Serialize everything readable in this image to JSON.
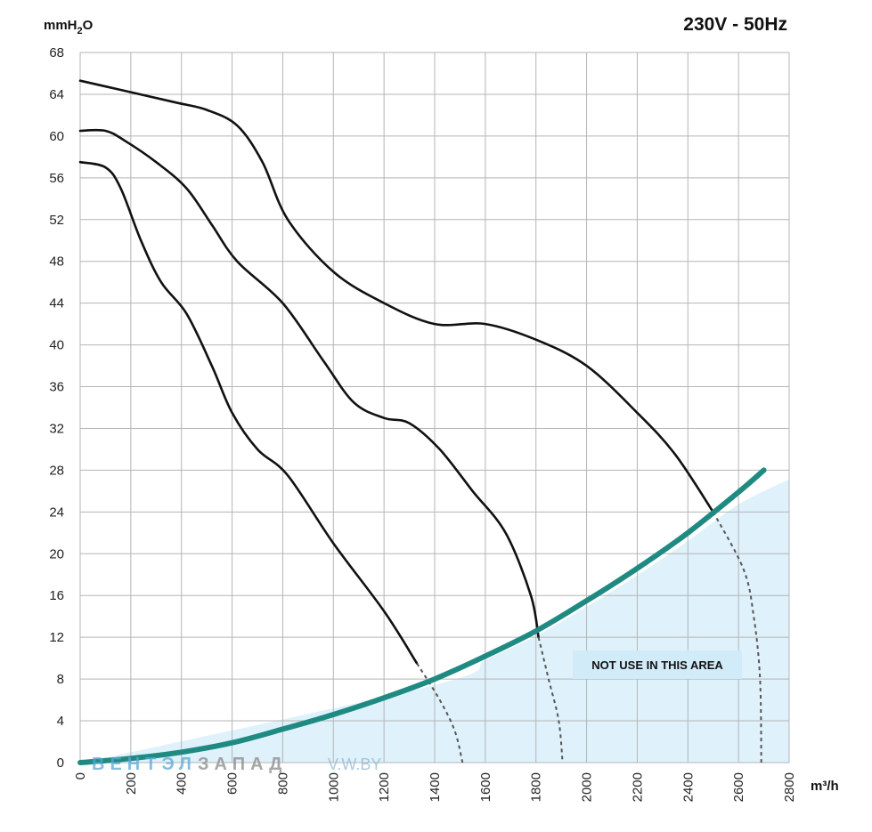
{
  "header": {
    "y_unit": "mmH",
    "y_unit_sub": "2",
    "y_unit_tail": "O",
    "supply": "230V - 50Hz",
    "x_unit": "m³/h"
  },
  "annotation": {
    "text": "NOT USE IN THIS AREA"
  },
  "watermark": {
    "part1": "ВЕНТЭЛ",
    "part2": "ЗАПАД",
    "part3": "V.W.BY"
  },
  "colors": {
    "curve": "#111111",
    "system_curve": "#1f8a82",
    "forbidden_fill": "#dff1fb",
    "grid": "#b5b5b5"
  },
  "chart_data": {
    "type": "line",
    "xlim": [
      0,
      2800
    ],
    "ylim": [
      0,
      68
    ],
    "xticks": [
      0,
      200,
      400,
      600,
      800,
      1000,
      1200,
      1400,
      1600,
      1800,
      2000,
      2200,
      2400,
      2600,
      2800
    ],
    "yticks": [
      0,
      4,
      8,
      12,
      16,
      20,
      24,
      28,
      32,
      36,
      40,
      44,
      48,
      52,
      56,
      60,
      64,
      68
    ],
    "grid": true,
    "series": [
      {
        "style": "fan-curve",
        "points": [
          [
            0,
            57.5
          ],
          [
            100,
            57
          ],
          [
            160,
            55
          ],
          [
            240,
            50
          ],
          [
            320,
            46
          ],
          [
            420,
            43
          ],
          [
            520,
            38
          ],
          [
            600,
            33.5
          ],
          [
            700,
            30
          ],
          [
            820,
            27.5
          ],
          [
            1000,
            21
          ],
          [
            1200,
            14.5
          ],
          [
            1330,
            9.5
          ]
        ],
        "extension": [
          [
            1330,
            9.5
          ],
          [
            1420,
            6
          ],
          [
            1480,
            3
          ],
          [
            1510,
            0
          ]
        ]
      },
      {
        "style": "fan-curve",
        "points": [
          [
            0,
            60.5
          ],
          [
            100,
            60.5
          ],
          [
            180,
            59.5
          ],
          [
            300,
            57.5
          ],
          [
            420,
            55
          ],
          [
            520,
            51.5
          ],
          [
            620,
            48
          ],
          [
            800,
            44
          ],
          [
            960,
            38.5
          ],
          [
            1080,
            34.5
          ],
          [
            1200,
            33
          ],
          [
            1300,
            32.5
          ],
          [
            1420,
            30
          ],
          [
            1550,
            26
          ],
          [
            1680,
            22
          ],
          [
            1780,
            16
          ],
          [
            1810,
            12
          ]
        ],
        "extension": [
          [
            1810,
            12
          ],
          [
            1850,
            8
          ],
          [
            1890,
            4
          ],
          [
            1905,
            0
          ]
        ]
      },
      {
        "style": "fan-curve",
        "points": [
          [
            0,
            65.3
          ],
          [
            200,
            64.2
          ],
          [
            380,
            63.2
          ],
          [
            500,
            62.5
          ],
          [
            620,
            61
          ],
          [
            720,
            57.5
          ],
          [
            820,
            52
          ],
          [
            1000,
            47
          ],
          [
            1200,
            44
          ],
          [
            1400,
            42
          ],
          [
            1600,
            42
          ],
          [
            1800,
            40.5
          ],
          [
            2000,
            38
          ],
          [
            2200,
            33.5
          ],
          [
            2350,
            29.5
          ],
          [
            2500,
            24
          ]
        ],
        "extension": [
          [
            2500,
            24
          ],
          [
            2620,
            18.5
          ],
          [
            2660,
            14
          ],
          [
            2685,
            8
          ],
          [
            2690,
            0
          ]
        ]
      },
      {
        "style": "system-curve",
        "points": [
          [
            0,
            0
          ],
          [
            200,
            0.4
          ],
          [
            400,
            1
          ],
          [
            600,
            1.9
          ],
          [
            800,
            3.2
          ],
          [
            1000,
            4.6
          ],
          [
            1200,
            6.2
          ],
          [
            1400,
            8
          ],
          [
            1600,
            10.2
          ],
          [
            1800,
            12.6
          ],
          [
            2000,
            15.5
          ],
          [
            2200,
            18.6
          ],
          [
            2400,
            22
          ],
          [
            2600,
            25.9
          ],
          [
            2700,
            28
          ]
        ]
      },
      {
        "style": "forbidden-area-boundary",
        "points": [
          [
            0,
            0
          ],
          [
            1400,
            7.5
          ],
          [
            1600,
            9.9
          ],
          [
            1800,
            12.2
          ],
          [
            2000,
            15
          ],
          [
            2200,
            18
          ],
          [
            2400,
            21.3
          ],
          [
            2600,
            24.8
          ],
          [
            2800,
            27.2
          ]
        ]
      }
    ]
  }
}
